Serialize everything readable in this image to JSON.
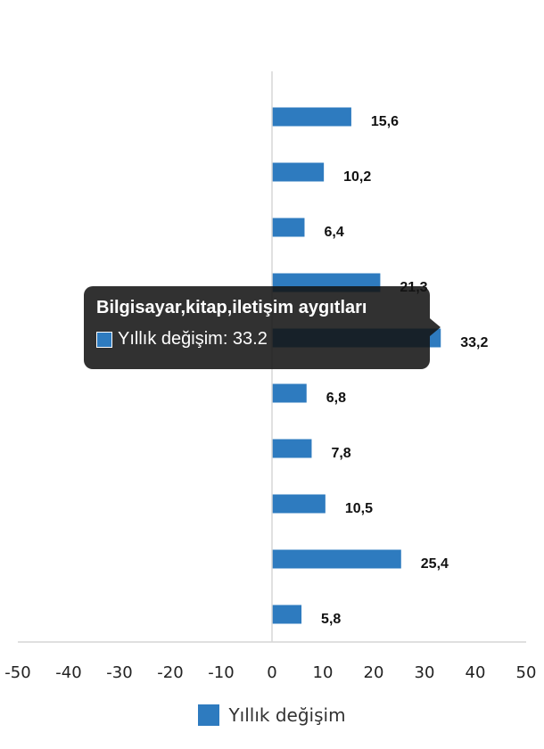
{
  "chart_data": {
    "type": "bar",
    "orientation": "horizontal",
    "series": [
      {
        "name": "Yıllık değişim",
        "values": [
          15.6,
          10.2,
          6.4,
          21.3,
          33.2,
          6.8,
          7.8,
          10.5,
          25.4,
          5.8
        ],
        "labels": [
          "15,6",
          "10,2",
          "6,4",
          "21,3",
          "33,2",
          "6,8",
          "7,8",
          "10,5",
          "25,4",
          "5,8"
        ]
      }
    ],
    "xlim": [
      -50,
      50
    ],
    "xticks": [
      -50,
      -40,
      -30,
      -20,
      -10,
      0,
      10,
      20,
      30,
      40,
      50
    ],
    "grid": false,
    "legend_position": "bottom",
    "color": "#2e7bbf"
  },
  "legend": {
    "label": "Yıllık değişim"
  },
  "tooltip": {
    "title": "Bilgisayar,kitap,iletişim aygıtları",
    "text": "Yıllık değişim: 33.2"
  }
}
